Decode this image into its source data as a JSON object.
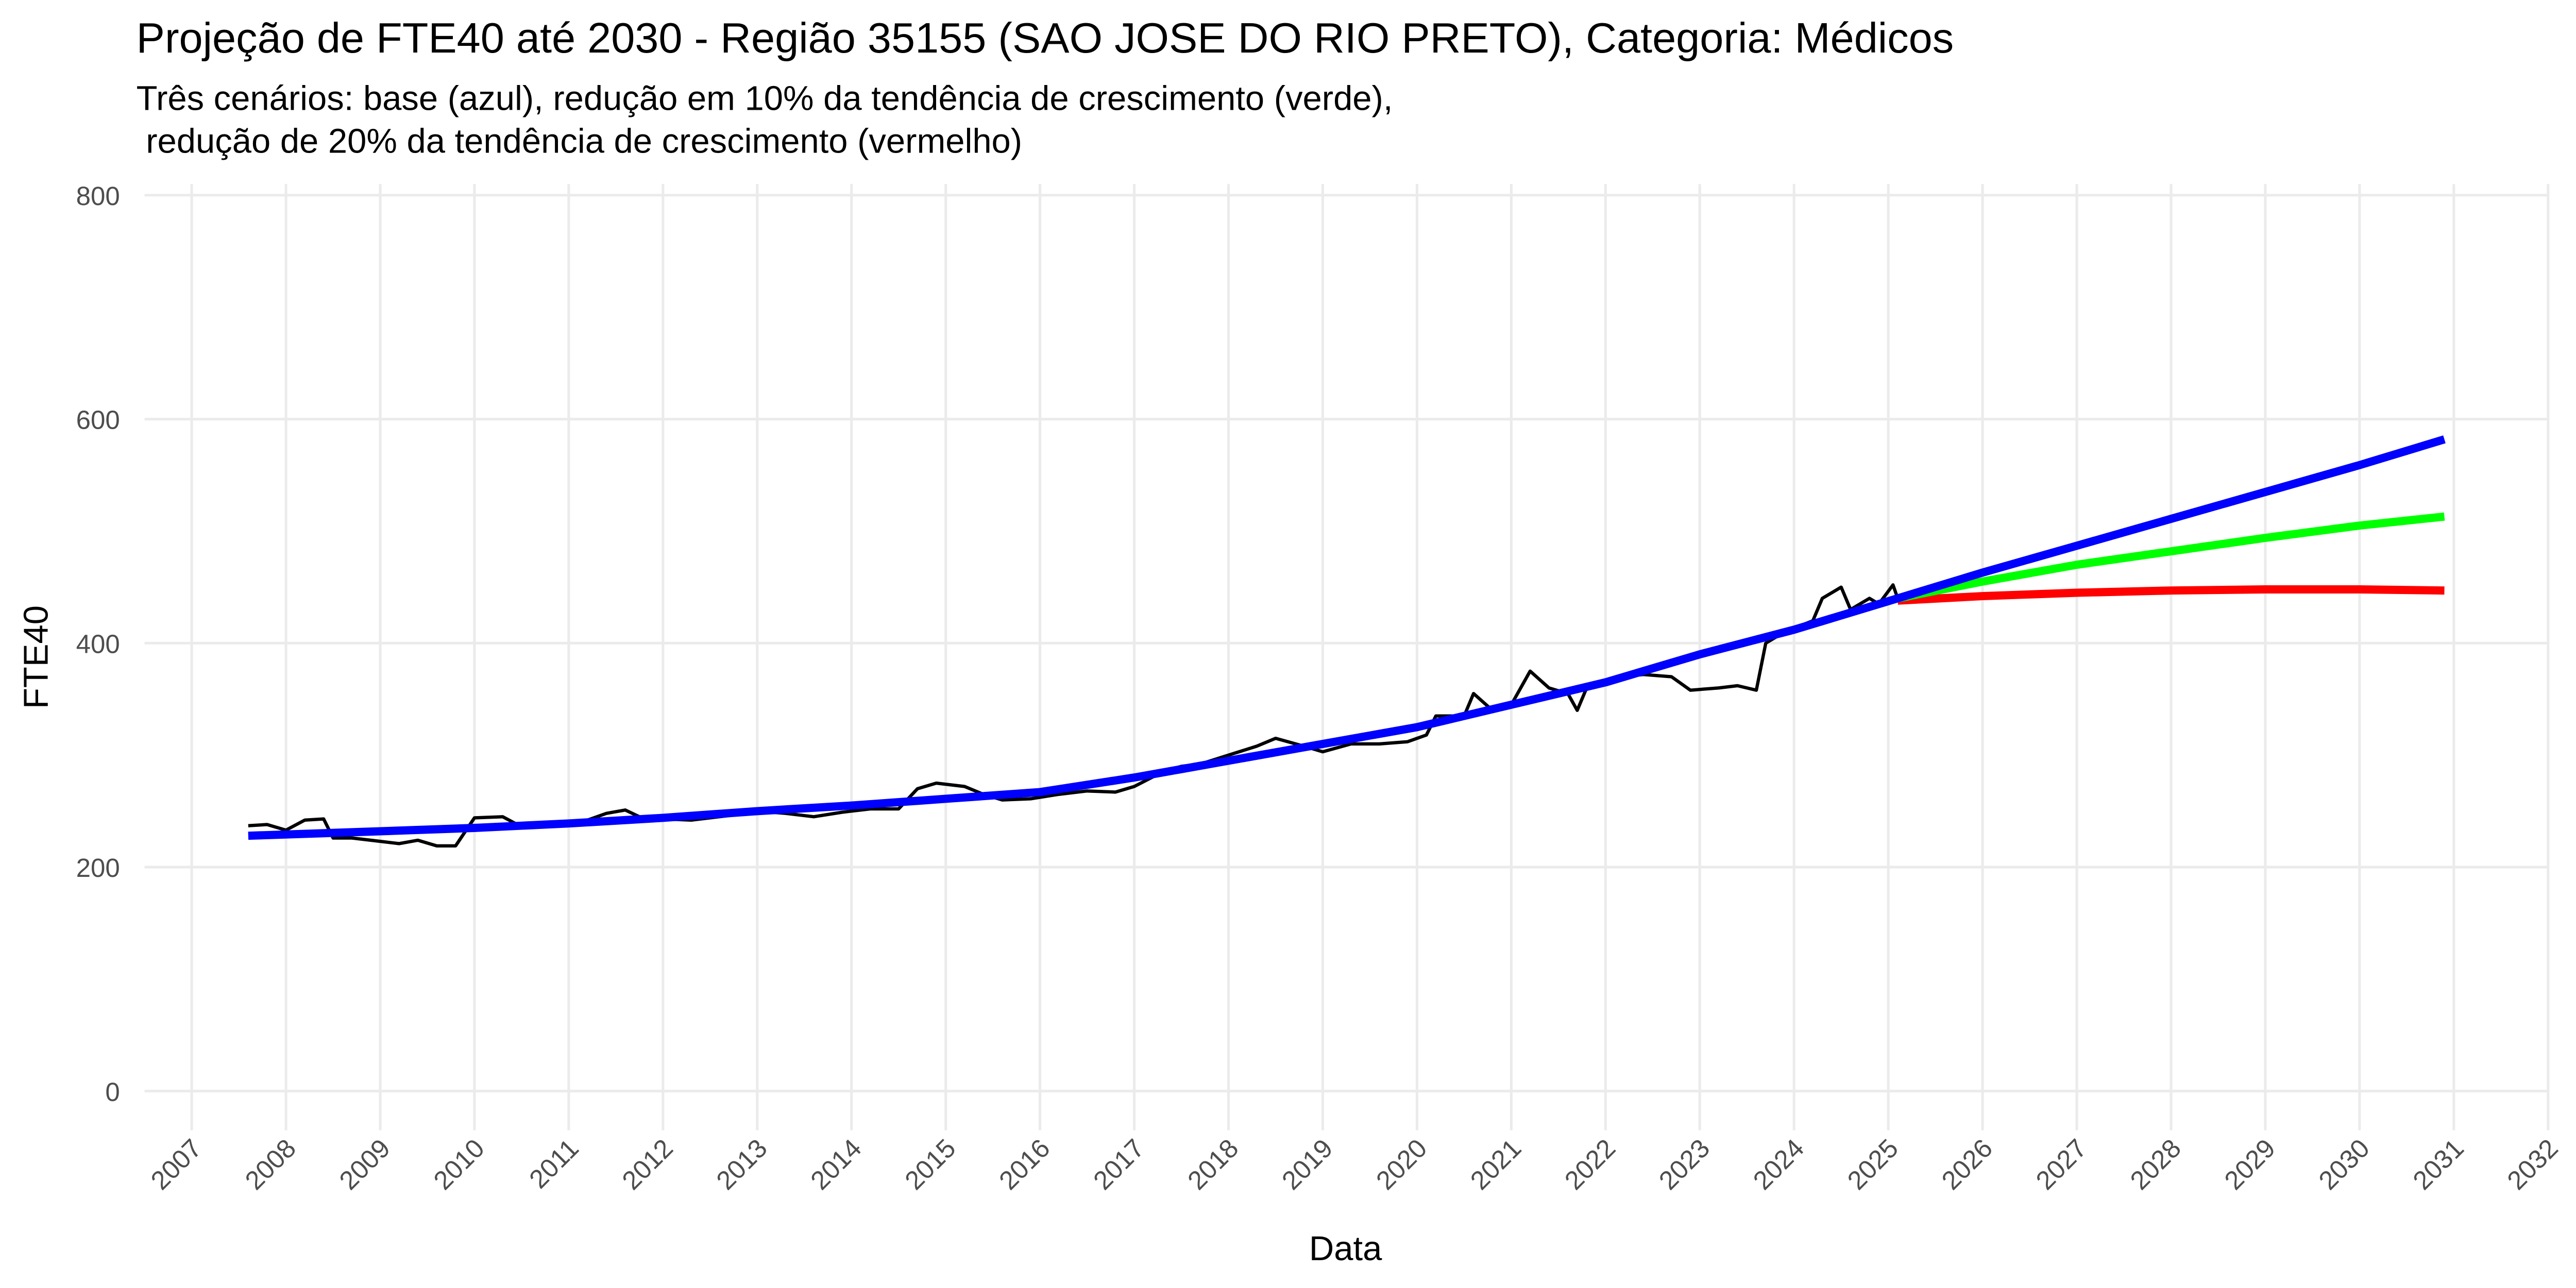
{
  "chart_data": {
    "type": "line",
    "title": "Projeção de FTE40 até 2030 - Região 35155 (SAO JOSE DO RIO PRETO), Categoria: Médicos",
    "subtitle": [
      "Três cenários: base (azul), redução em 10% da tendência de crescimento (verde),",
      " redução de 20% da tendência de crescimento (vermelho)"
    ],
    "x_label": "Data",
    "y_label": "FTE40",
    "xlim": [
      2006.5,
      2032
    ],
    "ylim": [
      -35,
      810
    ],
    "xticks": [
      2007,
      2008,
      2009,
      2010,
      2011,
      2012,
      2013,
      2014,
      2015,
      2016,
      2017,
      2018,
      2019,
      2020,
      2021,
      2022,
      2023,
      2024,
      2025,
      2026,
      2027,
      2028,
      2029,
      2030,
      2031,
      2032
    ],
    "yticks": [
      0,
      200,
      400,
      600,
      800
    ],
    "grid": true,
    "series": [
      {
        "color": "#000000",
        "width": 2,
        "x": [
          2007.6,
          2007.8,
          2008.0,
          2008.2,
          2008.4,
          2008.5,
          2008.7,
          2009.0,
          2009.2,
          2009.4,
          2009.6,
          2009.8,
          2010.0,
          2010.3,
          2010.5,
          2010.8,
          2011.0,
          2011.2,
          2011.4,
          2011.6,
          2011.8,
          2012.0,
          2012.3,
          2012.6,
          2012.8,
          2013.0,
          2013.3,
          2013.6,
          2013.9,
          2014.2,
          2014.5,
          2014.7,
          2014.9,
          2015.2,
          2015.4,
          2015.6,
          2015.9,
          2016.2,
          2016.5,
          2016.8,
          2017.0,
          2017.3,
          2017.5,
          2017.7,
          2018.0,
          2018.3,
          2018.5,
          2018.8,
          2019.0,
          2019.3,
          2019.6,
          2019.9,
          2020.1,
          2020.2,
          2020.5,
          2020.6,
          2020.8,
          2021.0,
          2021.2,
          2021.4,
          2021.6,
          2021.7,
          2021.8,
          2022.0,
          2022.2,
          2022.4,
          2022.7,
          2022.9,
          2023.2,
          2023.4,
          2023.6,
          2023.7,
          2023.9,
          2024.2,
          2024.3,
          2024.5,
          2024.6,
          2024.8,
          2024.9,
          2025.05,
          2025.1
        ],
        "values": [
          237,
          238,
          233,
          242,
          243,
          226,
          226,
          223,
          221,
          224,
          219,
          219,
          244,
          245,
          236,
          237,
          241,
          242,
          248,
          251,
          243,
          243,
          242,
          245,
          247,
          250,
          248,
          245,
          249,
          252,
          252,
          270,
          275,
          272,
          265,
          260,
          261,
          265,
          268,
          267,
          272,
          285,
          290,
          292,
          300,
          308,
          315,
          308,
          303,
          310,
          310,
          312,
          318,
          335,
          335,
          355,
          340,
          345,
          375,
          360,
          355,
          340,
          360,
          365,
          370,
          372,
          370,
          358,
          360,
          362,
          358,
          400,
          410,
          420,
          440,
          450,
          430,
          440,
          435,
          452,
          440
        ]
      },
      {
        "color": "#ff0000",
        "width": 5,
        "x": [
          2025.1,
          2026,
          2027,
          2028,
          2029,
          2030,
          2030.9
        ],
        "values": [
          438,
          442,
          445,
          447,
          448,
          448,
          447
        ]
      },
      {
        "color": "#00ff00",
        "width": 5,
        "x": [
          2025.1,
          2026,
          2027,
          2028,
          2029,
          2030,
          2030.9
        ],
        "values": [
          440,
          455,
          470,
          482,
          494,
          505,
          513
        ]
      },
      {
        "color": "#0000ff",
        "width": 5,
        "x": [
          2007.6,
          2009,
          2010,
          2011,
          2012,
          2013,
          2014,
          2015,
          2016,
          2017,
          2018,
          2019,
          2020,
          2021,
          2022,
          2023,
          2024,
          2025.1,
          2026,
          2027,
          2028,
          2029,
          2030,
          2030.9
        ],
        "values": [
          228,
          232,
          235,
          239,
          244,
          250,
          255,
          261,
          267,
          280,
          295,
          310,
          325,
          345,
          365,
          390,
          412,
          440,
          463,
          487,
          511,
          535,
          559,
          582
        ]
      }
    ]
  }
}
